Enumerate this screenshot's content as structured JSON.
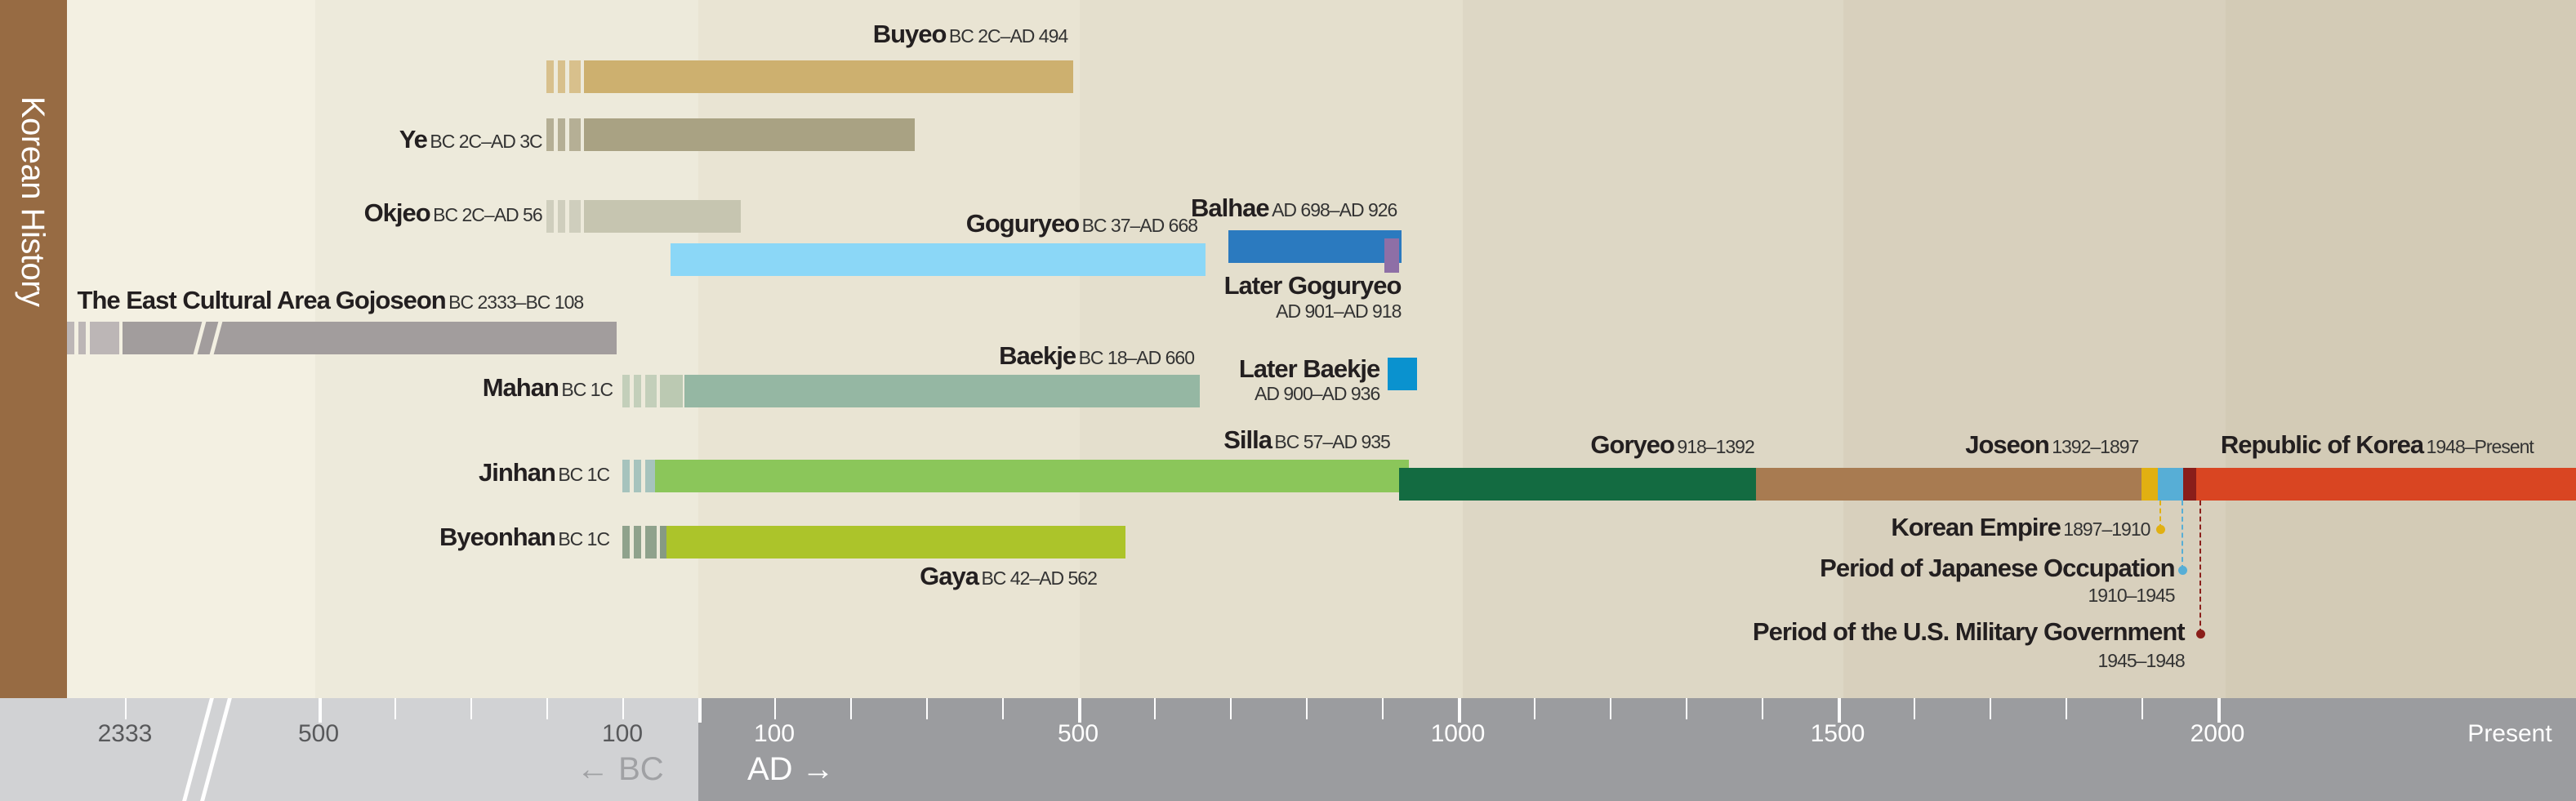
{
  "sidebar_title": "Korean History",
  "chart_data": {
    "type": "timeline",
    "title": "Korean History",
    "x_axis": {
      "bc_ticks": [
        {
          "label": "2333",
          "year": -2333
        },
        {
          "label": "500",
          "year": -500
        },
        {
          "label": "100",
          "year": -100
        }
      ],
      "ad_ticks": [
        {
          "label": "100",
          "year": 100
        },
        {
          "label": "500",
          "year": 500
        },
        {
          "label": "1000",
          "year": 1000
        },
        {
          "label": "1500",
          "year": 1500
        },
        {
          "label": "2000",
          "year": 2000
        },
        {
          "label": "Present",
          "year": 2100
        }
      ],
      "bc_label": "← BC",
      "ad_label": "AD →",
      "axis_break": "between 2333 BC and 500 BC"
    },
    "entities": [
      {
        "id": "buyeo",
        "name": "Buyeo",
        "dates": "BC 2C–AD 494",
        "start": -200,
        "end": 494,
        "uncertain_start": true,
        "color": "#cdb06f"
      },
      {
        "id": "ye",
        "name": "Ye",
        "dates": "BC 2C–AD 3C",
        "start": -200,
        "end": 285,
        "uncertain_start": true,
        "color": "#a9a283"
      },
      {
        "id": "okjeo",
        "name": "Okjeo",
        "dates": "BC 2C–AD 56",
        "start": -200,
        "end": 56,
        "uncertain_start": true,
        "color": "#c6c5b0"
      },
      {
        "id": "goguryeo",
        "name": "Goguryeo",
        "dates": "BC 37–AD 668",
        "start": -37,
        "end": 668,
        "color": "#8bd7f7"
      },
      {
        "id": "balhae",
        "name": "Balhae",
        "dates": "AD 698–AD 926",
        "start": 698,
        "end": 926,
        "color": "#2b7abf"
      },
      {
        "id": "later-goguryeo",
        "name": "Later Goguryeo",
        "dates": "AD 901–AD 918",
        "start": 901,
        "end": 918,
        "color": "#8e6fa6"
      },
      {
        "id": "gojoseon",
        "name": "Gojoseon",
        "prefix": "The East Cultural Area",
        "dates": "BC 2333–BC 108",
        "start": -2333,
        "end": -108,
        "uncertain_start": true,
        "color": "#a29d9d"
      },
      {
        "id": "mahan",
        "name": "Mahan",
        "dates": "BC 1C",
        "start": -100,
        "end": -20,
        "uncertain_start": true,
        "color": "#bbc9b2"
      },
      {
        "id": "baekje",
        "name": "Baekje",
        "dates": "BC 18–AD 660",
        "start": -18,
        "end": 660,
        "color": "#95b7a3"
      },
      {
        "id": "later-baekje",
        "name": "Later Baekje",
        "dates": "AD 900–AD 936",
        "start": 900,
        "end": 936,
        "color": "#0a92cf"
      },
      {
        "id": "jinhan",
        "name": "Jinhan",
        "dates": "BC 1C",
        "start": -100,
        "end": -57,
        "uncertain_start": true,
        "color": "#96b8b2"
      },
      {
        "id": "silla",
        "name": "Silla",
        "dates": "BC 57–AD 935",
        "start": -57,
        "end": 935,
        "color": "#8bc65a"
      },
      {
        "id": "byeonhan",
        "name": "Byeonhan",
        "dates": "BC 1C",
        "start": -100,
        "end": -42,
        "uncertain_start": true,
        "color": "#869a83"
      },
      {
        "id": "gaya",
        "name": "Gaya",
        "dates": "BC 42–AD 562",
        "start": -42,
        "end": 562,
        "color": "#acc42a"
      },
      {
        "id": "goryeo",
        "name": "Goryeo",
        "dates": "918–1392",
        "start": 918,
        "end": 1392,
        "color": "#136b41"
      },
      {
        "id": "joseon",
        "name": "Joseon",
        "dates": "1392–1897",
        "start": 1392,
        "end": 1897,
        "color": "#a87b51"
      },
      {
        "id": "korean-empire",
        "name": "Korean Empire",
        "dates": "1897–1910",
        "start": 1897,
        "end": 1910,
        "color": "#e1b012"
      },
      {
        "id": "japanese-occupation",
        "name": "Period of Japanese Occupation",
        "dates": "1910–1945",
        "start": 1910,
        "end": 1945,
        "color": "#57aed6"
      },
      {
        "id": "us-military",
        "name": "Period of the U.S. Military Government",
        "dates": "1945–1948",
        "start": 1945,
        "end": 1948,
        "color": "#8a1e1a"
      },
      {
        "id": "rok",
        "name": "Republic of Korea",
        "dates": "1948–Present",
        "start": 1948,
        "end": "Present",
        "color": "#d94522"
      }
    ]
  }
}
